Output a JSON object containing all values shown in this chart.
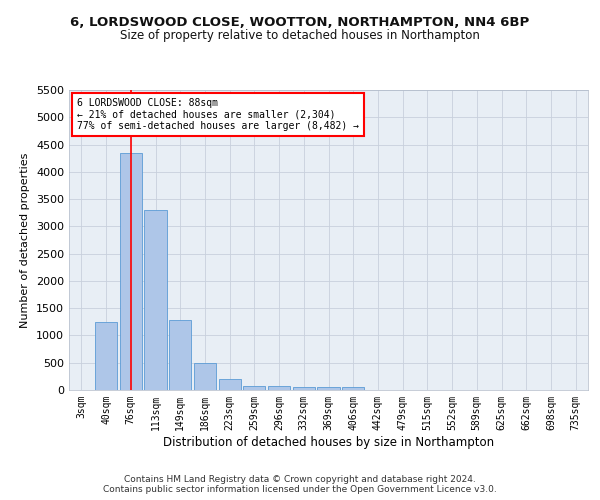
{
  "title1": "6, LORDSWOOD CLOSE, WOOTTON, NORTHAMPTON, NN4 6BP",
  "title2": "Size of property relative to detached houses in Northampton",
  "xlabel": "Distribution of detached houses by size in Northampton",
  "ylabel": "Number of detached properties",
  "footer1": "Contains HM Land Registry data © Crown copyright and database right 2024.",
  "footer2": "Contains public sector information licensed under the Open Government Licence v3.0.",
  "categories": [
    "3sqm",
    "40sqm",
    "76sqm",
    "113sqm",
    "149sqm",
    "186sqm",
    "223sqm",
    "259sqm",
    "296sqm",
    "332sqm",
    "369sqm",
    "406sqm",
    "442sqm",
    "479sqm",
    "515sqm",
    "552sqm",
    "589sqm",
    "625sqm",
    "662sqm",
    "698sqm",
    "735sqm"
  ],
  "values": [
    0,
    1250,
    4350,
    3300,
    1280,
    490,
    210,
    80,
    80,
    55,
    55,
    55,
    0,
    0,
    0,
    0,
    0,
    0,
    0,
    0,
    0
  ],
  "bar_color": "#aec6e8",
  "bar_edge_color": "#5b9bd5",
  "red_line_index": 2,
  "annotation_title": "6 LORDSWOOD CLOSE: 88sqm",
  "annotation_line1": "← 21% of detached houses are smaller (2,304)",
  "annotation_line2": "77% of semi-detached houses are larger (8,482) →",
  "ylim": [
    0,
    5500
  ],
  "yticks": [
    0,
    500,
    1000,
    1500,
    2000,
    2500,
    3000,
    3500,
    4000,
    4500,
    5000,
    5500
  ],
  "plot_bg_color": "#e8eef5",
  "fig_bg_color": "#ffffff"
}
